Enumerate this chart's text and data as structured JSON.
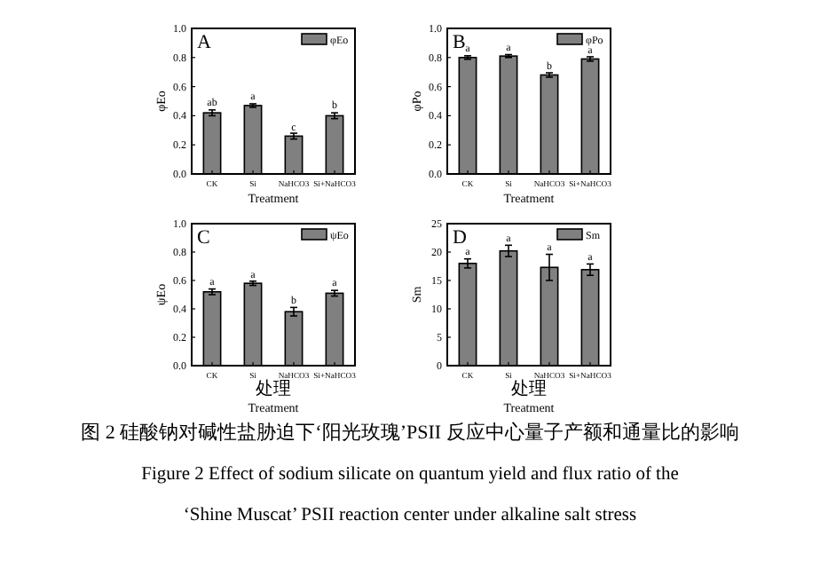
{
  "chart_data": [
    {
      "type": "bar",
      "categories": [
        "CK",
        "Si",
        "NaHCO3",
        "Si+NaHCO3"
      ],
      "series": [
        {
          "name": "φEo",
          "color": "#808080",
          "values": [
            0.42,
            0.47,
            0.26,
            0.4
          ],
          "errors": [
            0.02,
            0.012,
            0.02,
            0.02
          ]
        }
      ],
      "ylabel": "φEo",
      "xlabel": "Treatment",
      "ylim": [
        0,
        1
      ],
      "yticks": [
        {
          "value": 0,
          "label": "0.0"
        },
        {
          "value": 0.2,
          "label": "0.2"
        },
        {
          "value": 0.4,
          "label": "0.4"
        },
        {
          "value": 0.6,
          "label": "0.6"
        },
        {
          "value": 0.8,
          "label": "0.8"
        },
        {
          "value": 1,
          "label": "1.0"
        }
      ],
      "legend": "top right",
      "grid": false,
      "annotations": [
        "A",
        {
          "text": "ab",
          "x": "CK",
          "y": 0.47
        },
        {
          "text": "a",
          "x": "Si",
          "y": 0.51
        },
        {
          "text": "c",
          "x": "NaHCO3",
          "y": 0.3
        },
        {
          "text": "b",
          "x": "Si+NaHCO3",
          "y": 0.45
        }
      ]
    },
    {
      "type": "bar",
      "categories": [
        "CK",
        "Si",
        "NaHCO3",
        "Si+NaHCO3"
      ],
      "series": [
        {
          "name": "φPo",
          "color": "#808080",
          "values": [
            0.8,
            0.81,
            0.68,
            0.79
          ],
          "errors": [
            0.012,
            0.01,
            0.015,
            0.015
          ]
        }
      ],
      "ylabel": "φPo",
      "xlabel": "Treatment",
      "ylim": [
        0,
        1
      ],
      "yticks": [
        {
          "value": 0,
          "label": "0.0"
        },
        {
          "value": 0.2,
          "label": "0.2"
        },
        {
          "value": 0.4,
          "label": "0.4"
        },
        {
          "value": 0.6,
          "label": "0.6"
        },
        {
          "value": 0.8,
          "label": "0.8"
        },
        {
          "value": 1,
          "label": "1.0"
        }
      ],
      "legend": "top right",
      "grid": false,
      "annotations": [
        "B",
        {
          "text": "a",
          "x": "CK",
          "y": 0.84
        },
        {
          "text": "a",
          "x": "Si",
          "y": 0.85
        },
        {
          "text": "b",
          "x": "NaHCO3",
          "y": 0.72
        },
        {
          "text": "a",
          "x": "Si+NaHCO3",
          "y": 0.83
        }
      ]
    },
    {
      "type": "bar",
      "categories": [
        "CK",
        "Si",
        "NaHCO3",
        "Si+NaHCO3"
      ],
      "series": [
        {
          "name": "ψEo",
          "color": "#808080",
          "values": [
            0.52,
            0.58,
            0.38,
            0.51
          ],
          "errors": [
            0.02,
            0.015,
            0.03,
            0.02
          ]
        }
      ],
      "ylabel": "ψEo",
      "xlabel": "处理\nTreatment",
      "ylim": [
        0,
        1
      ],
      "yticks": [
        {
          "value": 0,
          "label": "0.0"
        },
        {
          "value": 0.2,
          "label": "0.2"
        },
        {
          "value": 0.4,
          "label": "0.4"
        },
        {
          "value": 0.6,
          "label": "0.6"
        },
        {
          "value": 0.8,
          "label": "0.8"
        },
        {
          "value": 1,
          "label": "1.0"
        }
      ],
      "legend": "top right",
      "grid": false,
      "annotations": [
        "C",
        {
          "text": "a",
          "x": "CK",
          "y": 0.57
        },
        {
          "text": "a",
          "x": "Si",
          "y": 0.62
        },
        {
          "text": "b",
          "x": "NaHCO3",
          "y": 0.44
        },
        {
          "text": "a",
          "x": "Si+NaHCO3",
          "y": 0.56
        }
      ]
    },
    {
      "type": "bar",
      "categories": [
        "CK",
        "Si",
        "NaHCO3",
        "Si+NaHCO3"
      ],
      "series": [
        {
          "name": "Sm",
          "color": "#808080",
          "values": [
            18,
            20.2,
            17.3,
            16.9
          ],
          "errors": [
            0.8,
            1,
            2.3,
            1
          ]
        }
      ],
      "ylabel": "Sm",
      "xlabel": "处理\nTreatment",
      "ylim": [
        0,
        25
      ],
      "yticks": [
        0,
        5,
        10,
        15,
        20,
        25
      ],
      "legend": "top right",
      "grid": false,
      "annotations": [
        "D",
        {
          "text": "a",
          "x": "CK",
          "y": 19.5
        },
        {
          "text": "a",
          "x": "Si",
          "y": 21.9
        },
        {
          "text": "a",
          "x": "NaHCO3",
          "y": 20.3
        },
        {
          "text": "a",
          "x": "Si+NaHCO3",
          "y": 18.6
        },
        "图 2 硅酸钠对碱性盐胁迫下‘阳光玫瑰’PSII 反应中心量子产额和通量比的影响",
        "Figure 2 Effect of sodium silicate on quantum yield and flux ratio of the",
        "‘Shine Muscat’ PSII reaction center under alkaline salt stress"
      ]
    }
  ]
}
